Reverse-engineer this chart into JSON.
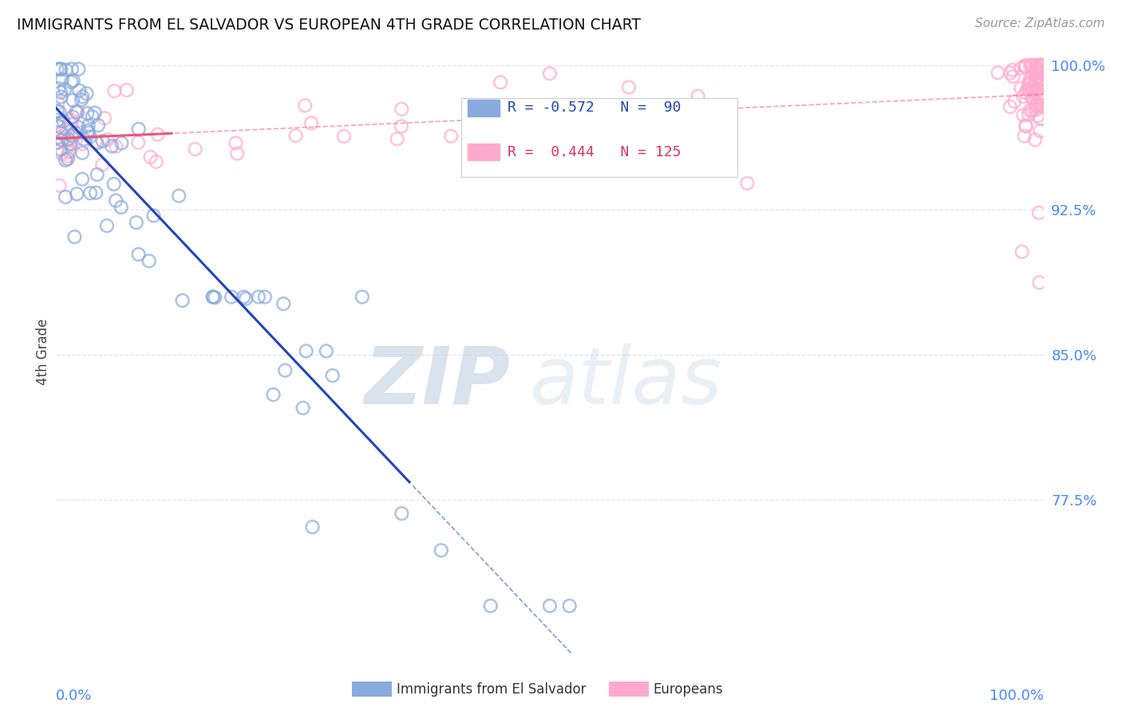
{
  "title": "IMMIGRANTS FROM EL SALVADOR VS EUROPEAN 4TH GRADE CORRELATION CHART",
  "source": "Source: ZipAtlas.com",
  "ylabel": "4th Grade",
  "right_yticks": [
    "100.0%",
    "92.5%",
    "85.0%",
    "77.5%"
  ],
  "right_ytick_vals": [
    1.0,
    0.925,
    0.85,
    0.775
  ],
  "xlim": [
    0.0,
    1.0
  ],
  "ylim": [
    0.695,
    1.008
  ],
  "blue_scatter_color": "#88AADD",
  "pink_scatter_color": "#FFAACC",
  "blue_line_color": "#2244BB",
  "pink_line_color": "#EE5577",
  "watermark_color": "#C8D8E8",
  "grid_color": "#DDDDEE",
  "tick_label_color": "#4488FF",
  "background_color": "#FFFFFF",
  "legend_blue_label": "R = -0.572   N =  90",
  "legend_pink_label": "R =  0.444   N = 125",
  "bottom_label_blue": "Immigrants from El Salvador",
  "bottom_label_pink": "Europeans",
  "blue_r": -0.572,
  "blue_n": 90,
  "pink_r": 0.444,
  "pink_n": 125
}
